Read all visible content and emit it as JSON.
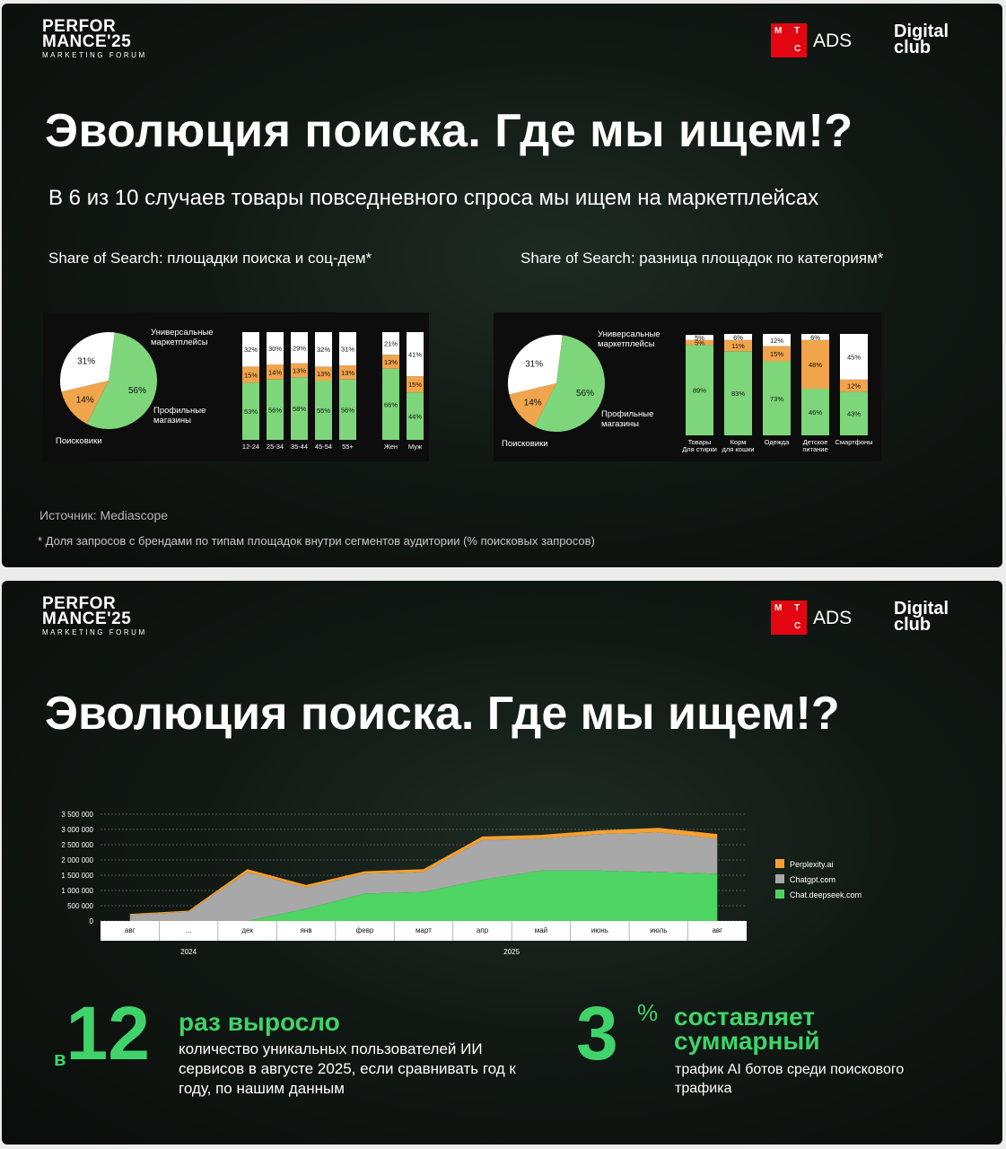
{
  "header": {
    "brand_line1": "PERFOR",
    "brand_line2": "MANCE'25",
    "brand_sub": "MARKETING FORUM",
    "mts_letters": [
      "М",
      "Т",
      "С"
    ],
    "ads": "ADS",
    "digital_line1": "Digital",
    "digital_line2": "club"
  },
  "slide1": {
    "title": "Эволюция поиска. Где мы ищем!?",
    "subtitle": "В 6 из 10 случаев товары повседневного спроса мы ищем на маркетплейсах",
    "left_chart_title": "Share of Search: площадки поиска и соц-дем*",
    "right_chart_title": "Share of Search: разница площадок по категориям*",
    "source": "Источник: Mediascope",
    "footnote": "* Доля запросов с брендами по типам площадок внутри сегментов аудитории (% поисковых запросов)"
  },
  "slide2": {
    "title": "Эволюция поиска. Где мы ищем!?",
    "stat1": {
      "prefix": "в",
      "value": "12",
      "headline": "раз выросло",
      "text": "количество уникальных пользователей ИИ сервисов в августе 2025, если сравнивать год к году, по нашим данным"
    },
    "stat2": {
      "value": "3",
      "unit": "%",
      "headline_line1": "составляет",
      "headline_line2": "суммарный",
      "text": "трафик AI ботов среди поискового трафика"
    }
  },
  "colors": {
    "green": "#7dd67a",
    "orange": "#f0a44b",
    "white": "#ffffff",
    "accent": "#3fd36a",
    "area_green": "#4dd463",
    "area_gray": "#a8a8a8",
    "area_orange": "#f5a030"
  },
  "chart_data": [
    {
      "type": "pie",
      "slices": [
        {
          "label": "Универсальные маркетплейсы",
          "value": 56,
          "display": "56%",
          "color": "#7dd67a"
        },
        {
          "label": "Профильные магазины",
          "value": 14,
          "display": "14%",
          "color": "#f0a44b"
        },
        {
          "label": "Поисковики",
          "value": 31,
          "display": "31%",
          "color": "#ffffff"
        }
      ]
    },
    {
      "type": "bar",
      "stacked": true,
      "categories": [
        "12-24",
        "25-34",
        "35-44",
        "45-54",
        "55+"
      ],
      "series": [
        {
          "values": [
            53,
            56,
            58,
            55,
            56
          ],
          "labels": [
            "53%",
            "56%",
            "58%",
            "55%",
            "56%"
          ],
          "color": "#7dd67a"
        },
        {
          "values": [
            15,
            14,
            13,
            13,
            13
          ],
          "labels": [
            "15%",
            "14%",
            "13%",
            "13%",
            "13%"
          ],
          "color": "#f0a44b"
        },
        {
          "values": [
            32,
            30,
            29,
            32,
            31
          ],
          "labels": [
            "32%",
            "30%",
            "29%",
            "32%",
            "31%"
          ],
          "color": "#ffffff"
        }
      ]
    },
    {
      "type": "bar",
      "stacked": true,
      "categories": [
        "Жен",
        "Муж"
      ],
      "series": [
        {
          "values": [
            66,
            44
          ],
          "labels": [
            "66%",
            "44%"
          ],
          "color": "#7dd67a"
        },
        {
          "values": [
            13,
            15
          ],
          "labels": [
            "13%",
            "15%"
          ],
          "color": "#f0a44b"
        },
        {
          "values": [
            21,
            41
          ],
          "labels": [
            "21%",
            "41%"
          ],
          "color": "#ffffff"
        }
      ]
    },
    {
      "type": "pie",
      "slices": [
        {
          "label": "Универсальные маркетплейсы",
          "value": 56,
          "display": "56%",
          "color": "#7dd67a"
        },
        {
          "label": "Профильные магазины",
          "value": 14,
          "display": "14%",
          "color": "#f0a44b"
        },
        {
          "label": "Поисковики",
          "value": 31,
          "display": "31%",
          "color": "#ffffff"
        }
      ]
    },
    {
      "type": "bar",
      "stacked": true,
      "categories": [
        [
          "Товары",
          "Для стирки"
        ],
        [
          "Корм",
          "для кошки"
        ],
        [
          "Одежда"
        ],
        [
          "Детское",
          "питание"
        ],
        [
          "Смартфоны"
        ]
      ],
      "series": [
        {
          "values": [
            89,
            83,
            73,
            46,
            43
          ],
          "labels": [
            "89%",
            "83%",
            "73%",
            "46%",
            "43%"
          ],
          "color": "#7dd67a"
        },
        {
          "values": [
            5,
            11,
            15,
            48,
            12
          ],
          "labels": [
            "5%",
            "11%",
            "15%",
            "48%",
            "12%"
          ],
          "color": "#f0a44b"
        },
        {
          "values": [
            5,
            6,
            12,
            6,
            45
          ],
          "labels": [
            "5%",
            "6%",
            "12%",
            "6%",
            "45%"
          ],
          "color": "#ffffff"
        }
      ]
    },
    {
      "type": "area",
      "stacked": true,
      "x": [
        "авг",
        "...",
        "дек",
        "янв",
        "февр",
        "март",
        "апр",
        "май",
        "июнь",
        "июль",
        "авг"
      ],
      "year_labels": [
        {
          "text": "2024",
          "index": 1
        },
        {
          "text": "2025",
          "index": 6.5
        }
      ],
      "ylim": [
        0,
        3500000
      ],
      "yticks": [
        "0",
        "500 000",
        "1 000 000",
        "1 500 000",
        "2 000 000",
        "2 500 000",
        "3 000 000",
        "3 500 000"
      ],
      "series": [
        {
          "name": "Chat.deepseek.com",
          "color": "#4dd463",
          "values": [
            0,
            0,
            0,
            400000,
            900000,
            950000,
            1350000,
            1650000,
            1650000,
            1600000,
            1550000
          ]
        },
        {
          "name": "Chatgpt.com",
          "color": "#a8a8a8",
          "values": [
            200000,
            300000,
            1600000,
            700000,
            650000,
            650000,
            1300000,
            1050000,
            1200000,
            1300000,
            1150000
          ]
        },
        {
          "name": "Perplexity.ai",
          "color": "#f5a030",
          "values": [
            30000,
            40000,
            100000,
            80000,
            80000,
            100000,
            120000,
            120000,
            120000,
            150000,
            150000
          ]
        }
      ]
    }
  ]
}
